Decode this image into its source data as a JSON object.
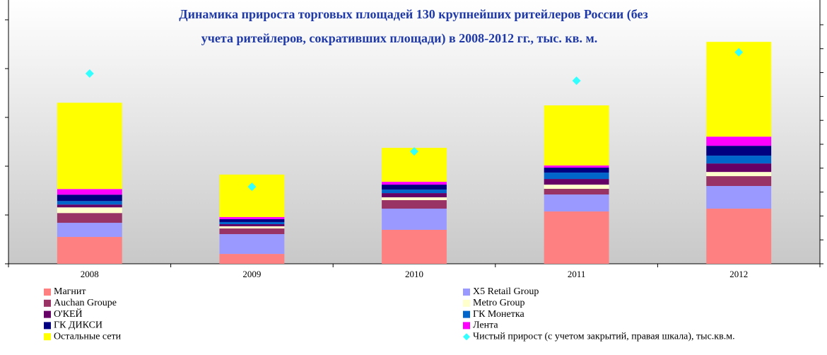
{
  "chart_data": {
    "type": "bar",
    "title": [
      "Динамика прироста торговых площадей 130 крупнейших ритейлеров России (без",
      "учета ритейлеров, сокративших площади) в 2008-2012 гг., тыс. кв. м."
    ],
    "categories": [
      "2008",
      "2009",
      "2010",
      "2011",
      "2012"
    ],
    "stacked": true,
    "ylim": [
      0,
      2500
    ],
    "yticks": [
      0,
      500,
      1000,
      1500,
      2000,
      2500
    ],
    "y2lim": [
      0,
      1000
    ],
    "y2ticks": [
      0,
      100,
      200,
      300,
      400,
      500,
      600,
      700,
      800,
      900,
      1000
    ],
    "series": [
      {
        "name": "Магнит",
        "color": "#ff8080",
        "values": [
          275,
          101,
          348,
          536,
          565
        ]
      },
      {
        "name": "X5 Retail Group",
        "color": "#9999ff",
        "values": [
          145,
          203,
          217,
          174,
          232
        ]
      },
      {
        "name": "Auchan Groupe",
        "color": "#993366",
        "values": [
          100,
          58,
          87,
          58,
          101
        ]
      },
      {
        "name": "Metro Group",
        "color": "#ffffcc",
        "values": [
          58,
          22,
          29,
          43,
          43
        ]
      },
      {
        "name": "О'КЕЙ",
        "color": "#660066",
        "values": [
          29,
          22,
          43,
          58,
          87
        ]
      },
      {
        "name": "ГК Монетка",
        "color": "#0066cc",
        "values": [
          36,
          22,
          36,
          65,
          80
        ]
      },
      {
        "name": "ГК ДИКСИ",
        "color": "#000080",
        "values": [
          65,
          29,
          51,
          51,
          101
        ]
      },
      {
        "name": "Лента",
        "color": "#ff00ff",
        "values": [
          58,
          22,
          29,
          22,
          94
        ]
      },
      {
        "name": "Остальные сети",
        "color": "#ffff00",
        "values": [
          884,
          435,
          348,
          616,
          971
        ]
      },
      {
        "name": "Чистый прирост (с учетом закрытий, правая шкала), тыс.кв.м.",
        "color": "#33ffff",
        "type": "scatter",
        "axis": "y2",
        "values": [
          796,
          322,
          470,
          766,
          885
        ]
      }
    ]
  }
}
